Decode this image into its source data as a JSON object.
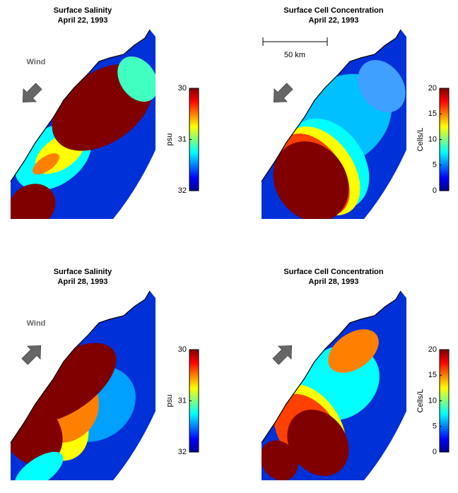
{
  "chart_data": [
    {
      "type": "map",
      "title": "Surface Salinity",
      "subtitle": "April 22, 1993",
      "colorbar_label": "psu",
      "clim": [
        32,
        30
      ],
      "cticks": [
        30,
        31,
        32
      ],
      "annotations": [
        "Wind"
      ],
      "wind": "northeast"
    },
    {
      "type": "map",
      "title": "Surface Cell Concentration",
      "subtitle": "April 22, 1993",
      "colorbar_label": "Cells/L",
      "clim": [
        0,
        20
      ],
      "cticks": [
        0,
        5,
        10,
        15,
        20
      ],
      "annotations": [
        "50 km"
      ],
      "wind": "northeast"
    },
    {
      "type": "map",
      "title": "Surface Salinity",
      "subtitle": "April 28, 1993",
      "colorbar_label": "psu",
      "clim": [
        32,
        30
      ],
      "cticks": [
        30,
        31,
        32
      ],
      "annotations": [
        "Wind"
      ],
      "wind": "southwest"
    },
    {
      "type": "map",
      "title": "Surface Cell Concentration",
      "subtitle": "April 28, 1993",
      "colorbar_label": "Cells/L",
      "clim": [
        0,
        20
      ],
      "cticks": [
        0,
        5,
        10,
        15,
        20
      ],
      "annotations": [],
      "wind": "southwest"
    }
  ]
}
